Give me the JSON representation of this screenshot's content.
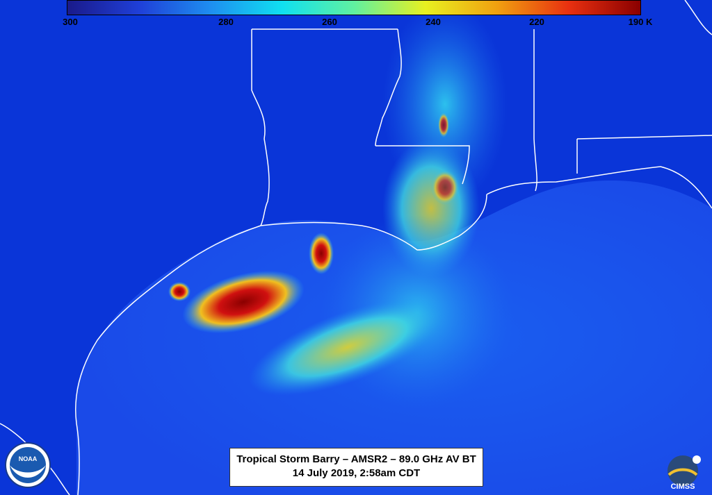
{
  "colorbar": {
    "ticks": [
      "300",
      "280",
      "260",
      "240",
      "220",
      "190 K"
    ],
    "colors": [
      "#1a1a8a",
      "#1f3fd8",
      "#1e8ef0",
      "#10e0f0",
      "#60f0a0",
      "#e8f020",
      "#f0a010",
      "#e83010",
      "#8a0000"
    ]
  },
  "caption": {
    "line1": "Tropical Storm Barry – AMSR2 – 89.0 GHz AV BT",
    "line2": "14 July 2019, 2:58am CDT"
  },
  "logos": {
    "noaa": "NOAA",
    "cimss": "CIMSS"
  },
  "colors": {
    "background": "#0a35d8",
    "border_lines": "#ffffff"
  }
}
